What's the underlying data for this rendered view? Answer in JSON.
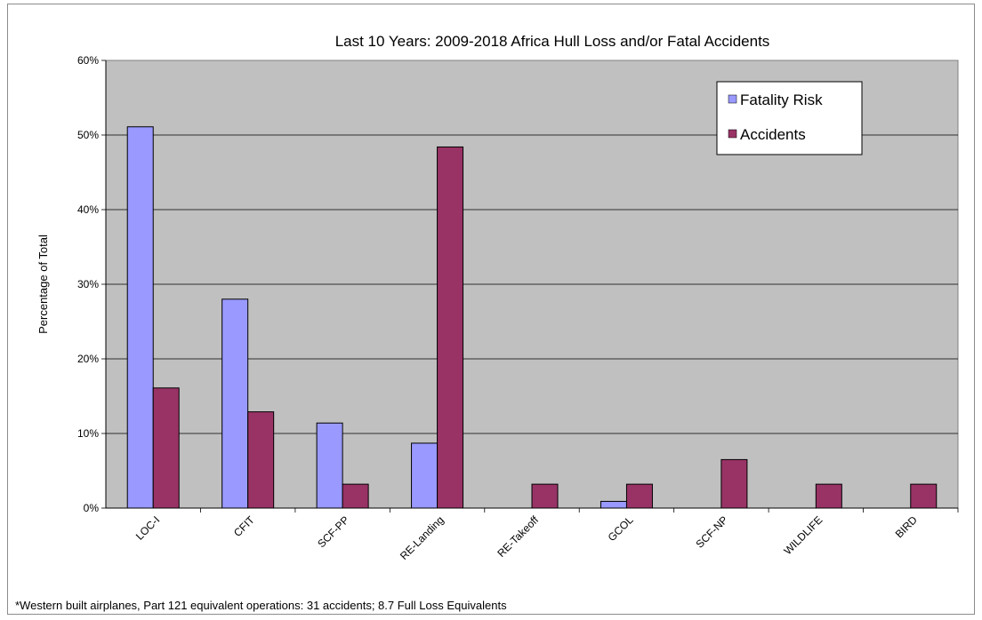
{
  "chart_data": {
    "type": "bar",
    "title": "Last 10 Years: 2009-2018 Africa Hull Loss and/or Fatal Accidents",
    "ylabel": "Percentage of Total",
    "xlabel": "",
    "ylim": [
      0,
      60
    ],
    "yticks": [
      0,
      10,
      20,
      30,
      40,
      50,
      60
    ],
    "ytick_labels": [
      "0%",
      "10%",
      "20%",
      "30%",
      "40%",
      "50%",
      "60%"
    ],
    "grid": true,
    "legend_position": "top-right",
    "categories": [
      "LOC-I",
      "CFIT",
      "SCF-PP",
      "RE-Landing",
      "RE-Takeoff",
      "GCOL",
      "SCF-NP",
      "WILDLIFE",
      "BIRD"
    ],
    "series": [
      {
        "name": "Fatality Risk",
        "color": "#9999ff",
        "values": [
          51.1,
          28.0,
          11.4,
          8.7,
          0,
          0.9,
          0,
          0,
          0
        ]
      },
      {
        "name": "Accidents",
        "color": "#993366",
        "values": [
          16.1,
          12.9,
          3.2,
          48.4,
          3.2,
          3.2,
          6.5,
          3.2,
          3.2
        ]
      }
    ],
    "footnote": "*Western built airplanes, Part 121 equivalent operations: 31 accidents; 8.7 Full Loss Equivalents",
    "plot_background": "#c0c0c0"
  }
}
